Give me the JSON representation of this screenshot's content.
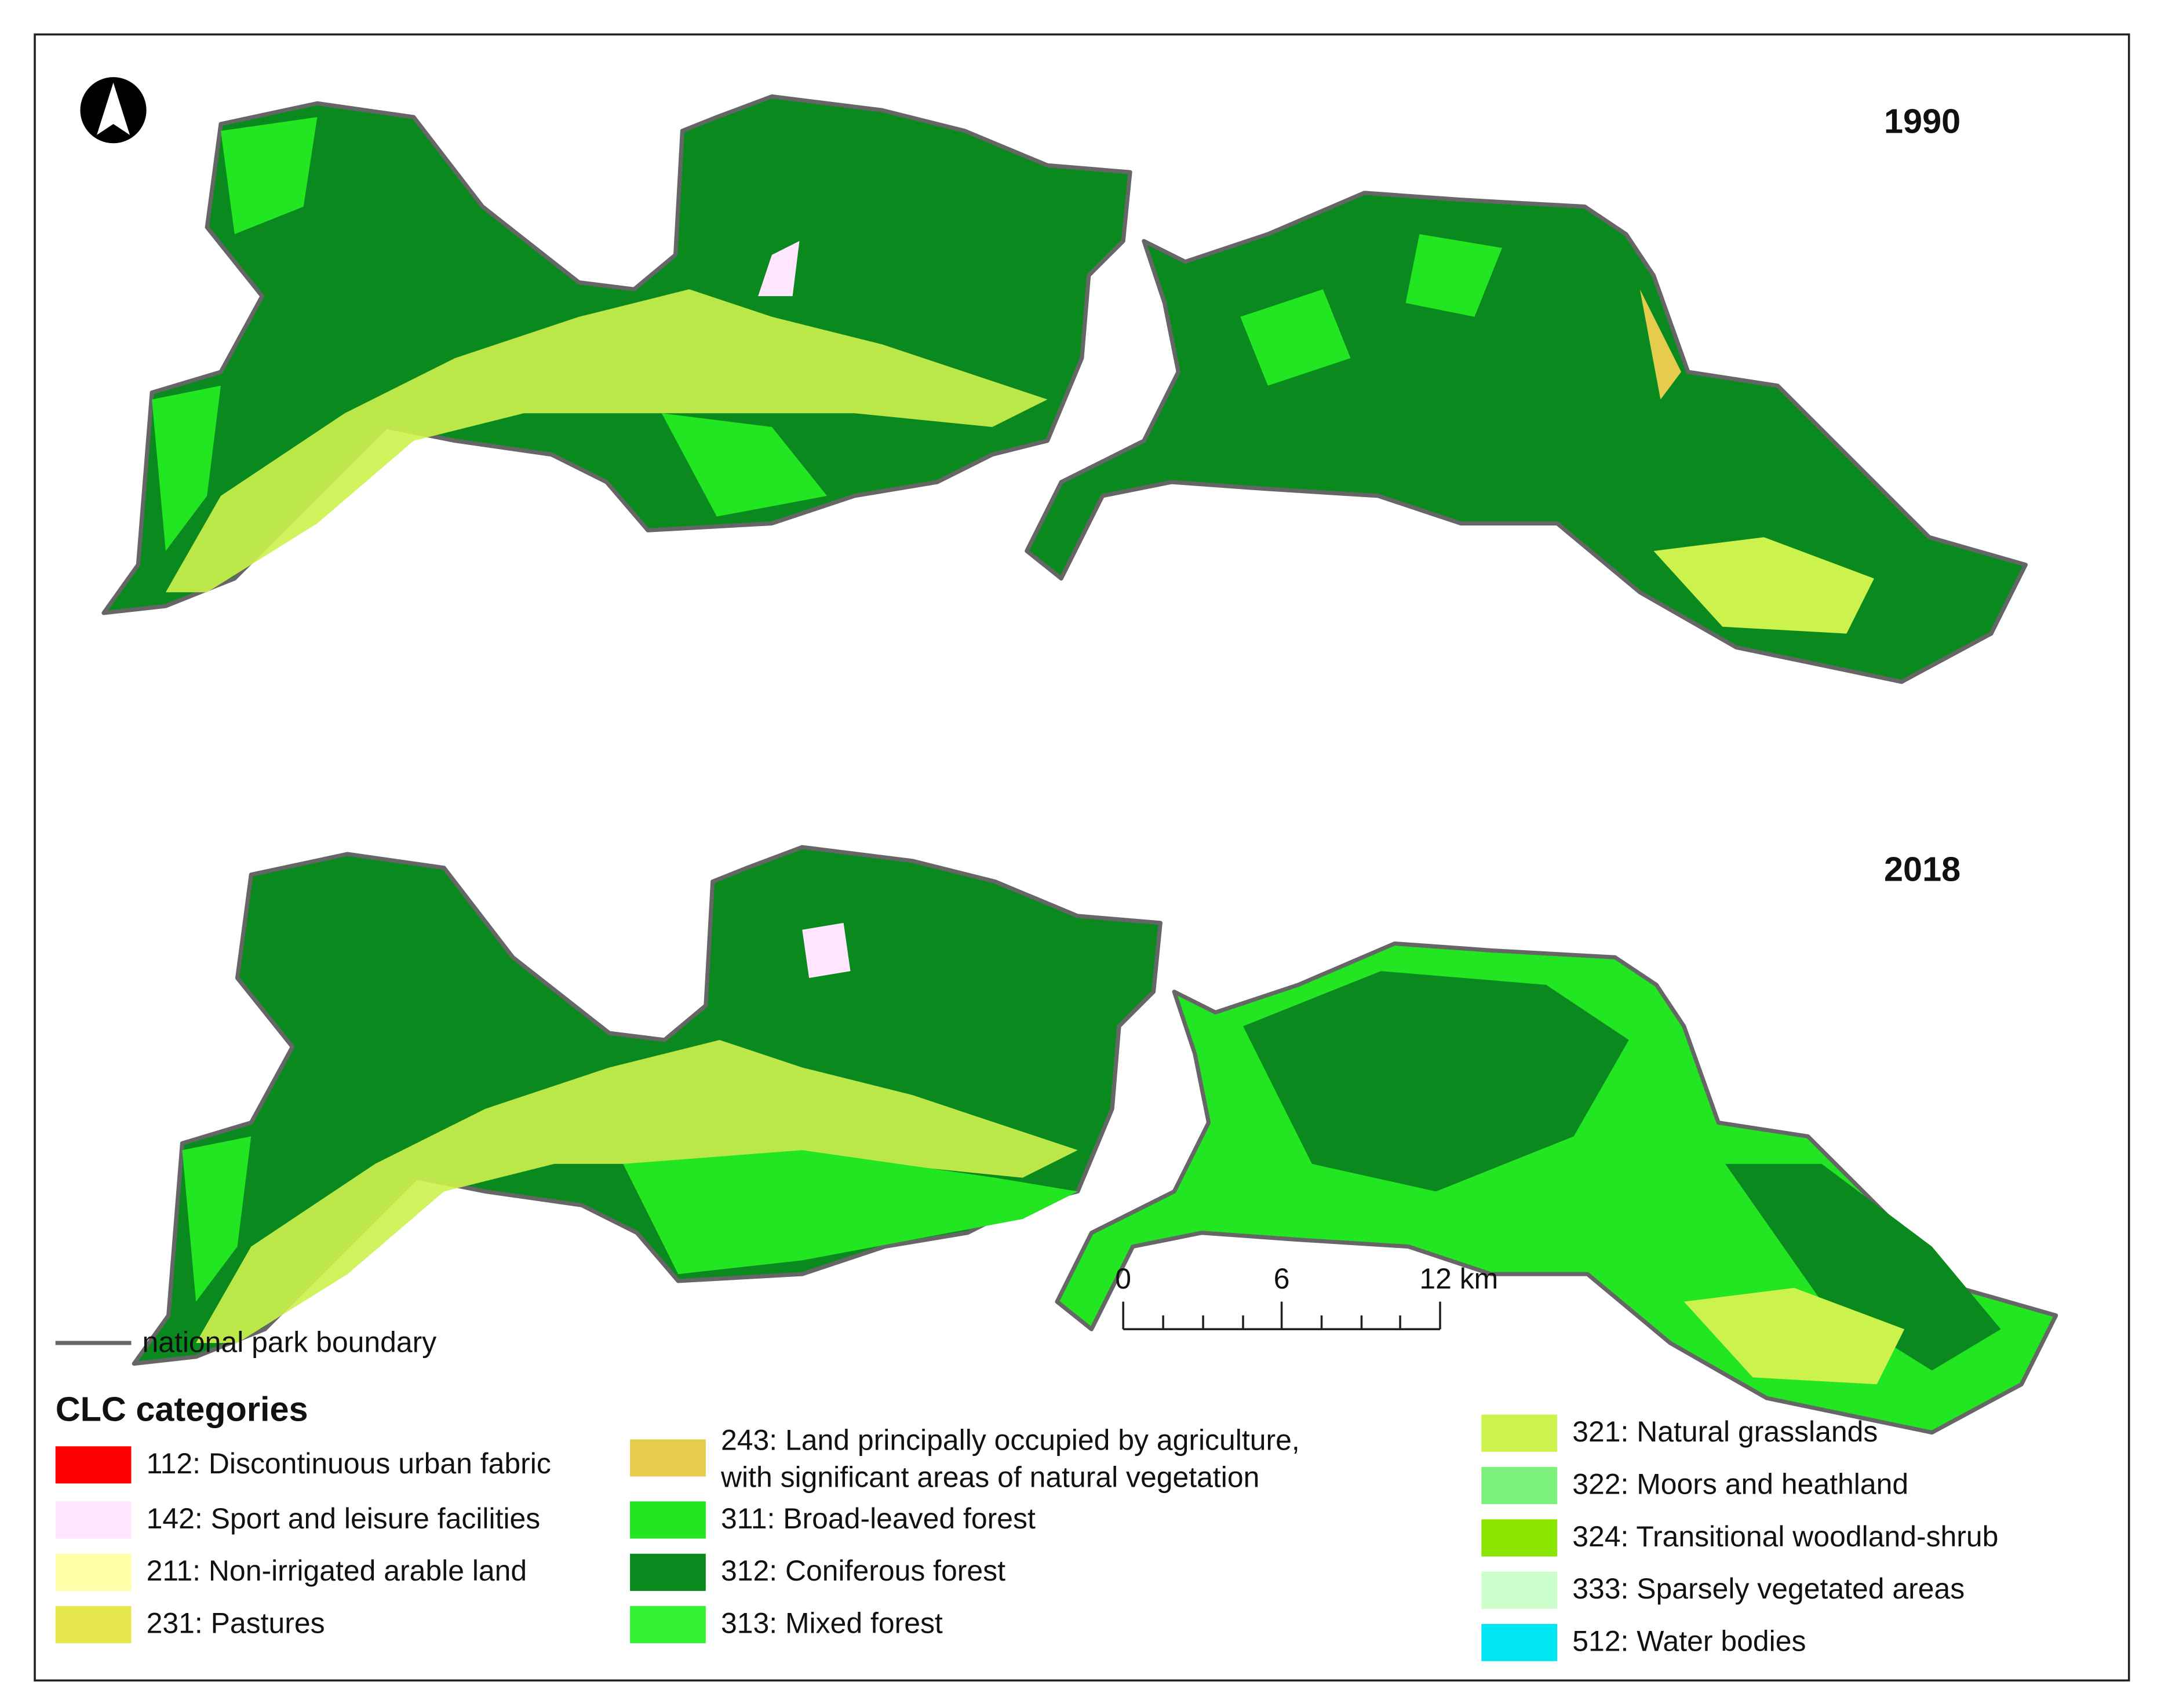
{
  "panels": [
    {
      "year": "1990"
    },
    {
      "year": "2018"
    }
  ],
  "scale_bar": {
    "labels": [
      "0",
      "6",
      "12 km"
    ]
  },
  "boundary_legend": "national park boundary",
  "legend": {
    "title": "CLC categories",
    "items": [
      {
        "lines": [
          "112: Discontinuous urban fabric"
        ],
        "color": "#ff0000"
      },
      {
        "lines": [
          "142: Sport and leisure facilities"
        ],
        "color": "#ffe6ff"
      },
      {
        "lines": [
          "211: Non-irrigated arable land"
        ],
        "color": "#ffffa8"
      },
      {
        "lines": [
          "231: Pastures"
        ],
        "color": "#e6e64d"
      },
      {
        "lines": [
          "243: Land principally occupied by agriculture,",
          "with significant areas of natural vegetation"
        ],
        "color": "#e6cc4d"
      },
      {
        "lines": [
          "311: Broad-leaved forest"
        ],
        "color": "#22e622"
      },
      {
        "lines": [
          "312: Coniferous forest"
        ],
        "color": "#0a8a1e"
      },
      {
        "lines": [
          "313: Mixed forest"
        ],
        "color": "#33f233"
      },
      {
        "lines": [
          "321: Natural grasslands"
        ],
        "color": "#ccf24d"
      },
      {
        "lines": [
          "322: Moors and heathland"
        ],
        "color": "#7cf27c"
      },
      {
        "lines": [
          "324: Transitional woodland-shrub"
        ],
        "color": "#8ae600"
      },
      {
        "lines": [
          "333: Sparsely vegetated areas"
        ],
        "color": "#ccffcc"
      },
      {
        "lines": [
          "512: Water bodies"
        ],
        "color": "#00e6f2"
      }
    ]
  }
}
